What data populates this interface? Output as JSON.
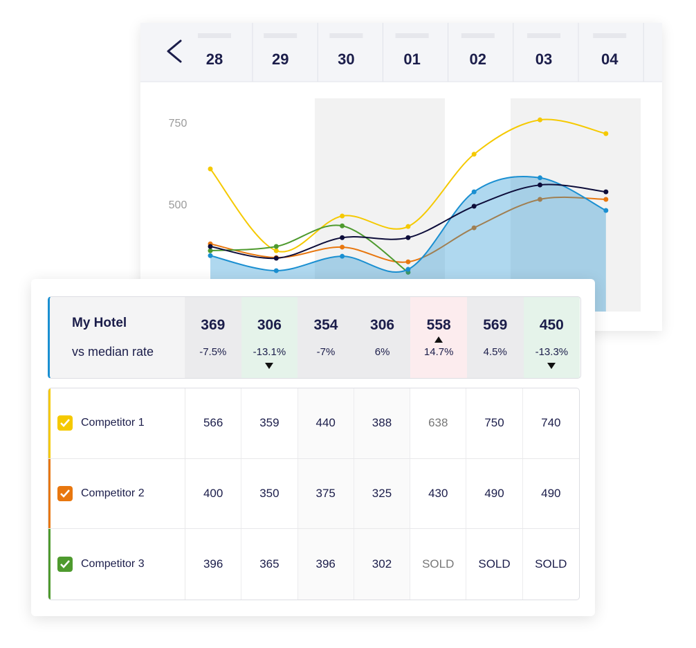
{
  "chart_data": {
    "type": "line",
    "categories": [
      "28",
      "29",
      "30",
      "01",
      "02",
      "03",
      "04"
    ],
    "ylim": [
      172,
      824
    ],
    "yticks": [
      500,
      750
    ],
    "series": [
      {
        "color": "#f5c900",
        "values": [
          608,
          358,
          464,
          432,
          653,
          758,
          716
        ]
      },
      {
        "color": "#e8770f",
        "values": [
          379,
          337,
          369,
          324,
          428,
          515,
          515
        ]
      },
      {
        "color": "#4e9a2e",
        "values": [
          358,
          371,
          434,
          292,
          null,
          null,
          null
        ]
      },
      {
        "color": "#1a8fd1",
        "values": [
          343,
          297,
          341,
          301,
          538,
          581,
          481
        ],
        "area": true
      },
      {
        "color": "#0d0d3a",
        "values": [
          371,
          335,
          398,
          398,
          494,
          559,
          538
        ]
      }
    ]
  },
  "my_hotel": {
    "label": "My Hotel",
    "sublabel": "vs median rate",
    "rates": [
      369,
      306,
      354,
      306,
      558,
      569,
      450
    ],
    "diffs": [
      "-7.5%",
      "-13.1%",
      "-7%",
      "6%",
      "14.7%",
      "4.5%",
      "-13.3%"
    ]
  },
  "competitors": [
    {
      "name": "Competitor 1",
      "color": "#f5c900",
      "rates": [
        566,
        359,
        440,
        388,
        638,
        750,
        740
      ]
    },
    {
      "name": "Competitor 2",
      "color": "#e8770f",
      "rates": [
        400,
        350,
        375,
        325,
        430,
        490,
        490
      ]
    },
    {
      "name": "Competitor 3",
      "color": "#4e9a2e",
      "rates": [
        396,
        365,
        396,
        302,
        "SOLD",
        "SOLD",
        "SOLD"
      ]
    }
  ]
}
